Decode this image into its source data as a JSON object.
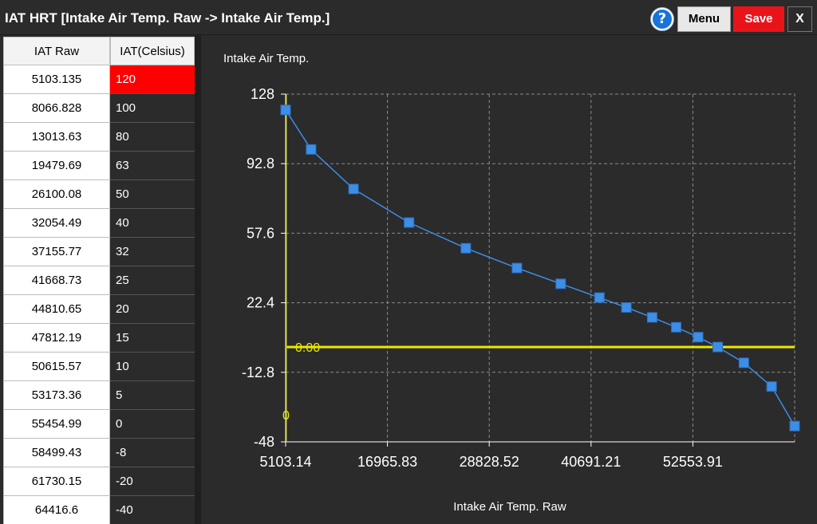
{
  "window": {
    "title": "IAT HRT [Intake Air Temp. Raw -> Intake Air Temp.]",
    "help_icon": "question-circle-icon",
    "menu_label": "Menu",
    "save_label": "Save",
    "close_label": "X",
    "colors": {
      "save_bg": "#e8141a",
      "highlight": "#ff0000",
      "series": "#3d8ee6",
      "zero_line": "#e8e800"
    }
  },
  "table": {
    "headers": {
      "raw": "IAT Raw",
      "celsius": "IAT(Celsius)"
    },
    "rows": [
      {
        "raw": "5103.135",
        "celsius": "120",
        "selected": true
      },
      {
        "raw": "8066.828",
        "celsius": "100"
      },
      {
        "raw": "13013.63",
        "celsius": "80"
      },
      {
        "raw": "19479.69",
        "celsius": "63"
      },
      {
        "raw": "26100.08",
        "celsius": "50"
      },
      {
        "raw": "32054.49",
        "celsius": "40"
      },
      {
        "raw": "37155.77",
        "celsius": "32"
      },
      {
        "raw": "41668.73",
        "celsius": "25"
      },
      {
        "raw": "44810.65",
        "celsius": "20"
      },
      {
        "raw": "47812.19",
        "celsius": "15"
      },
      {
        "raw": "50615.57",
        "celsius": "10"
      },
      {
        "raw": "53173.36",
        "celsius": "5"
      },
      {
        "raw": "55454.99",
        "celsius": "0"
      },
      {
        "raw": "58499.43",
        "celsius": "-8"
      },
      {
        "raw": "61730.15",
        "celsius": "-20"
      },
      {
        "raw": "64416.6",
        "celsius": "-40"
      }
    ]
  },
  "chart_data": {
    "type": "line",
    "title": "Intake Air Temp.",
    "xlabel": "Intake Air Temp. Raw",
    "ylabel": "",
    "xlim": [
      5103.14,
      64416.6
    ],
    "ylim": [
      -48,
      128
    ],
    "x_ticks": [
      "5103.14",
      "16965.83",
      "28828.52",
      "40691.21",
      "52553.91"
    ],
    "y_ticks": [
      "128",
      "92.8",
      "57.6",
      "22.4",
      "-12.8",
      "-48"
    ],
    "grid": true,
    "x": [
      5103.135,
      8066.828,
      13013.63,
      19479.69,
      26100.08,
      32054.49,
      37155.77,
      41668.73,
      44810.65,
      47812.19,
      50615.57,
      53173.36,
      55454.99,
      58499.43,
      61730.15,
      64416.6
    ],
    "series": [
      {
        "values": [
          120,
          100,
          80,
          63,
          50,
          40,
          32,
          25,
          20,
          15,
          10,
          5,
          0,
          -8,
          -20,
          -40
        ]
      }
    ],
    "cursor": {
      "y_label": "0.00",
      "x_label": "0"
    }
  }
}
